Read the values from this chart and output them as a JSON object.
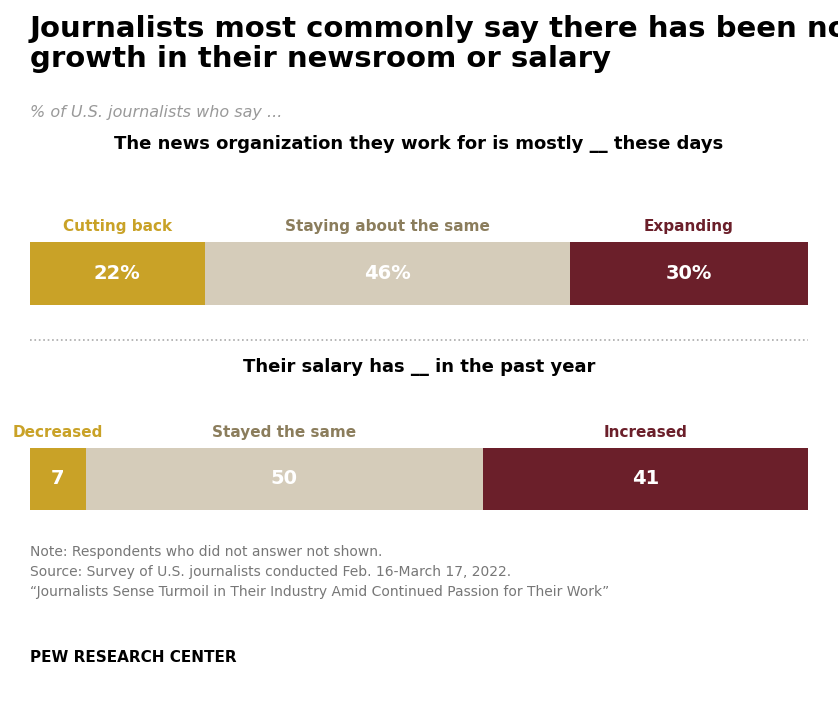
{
  "title_line1": "Journalists most commonly say there has been no",
  "title_line2": "growth in their newsroom or salary",
  "subtitle": "% of U.S. journalists who say ...",
  "chart1_title": "The news organization they work for is mostly __ these days",
  "chart2_title": "Their salary has __ in the past year",
  "chart1": {
    "segments": [
      {
        "label": "Cutting back",
        "value": 22,
        "display": "22%",
        "color": "#C9A227"
      },
      {
        "label": "Staying about the same",
        "value": 46,
        "display": "46%",
        "color": "#D5CCBA"
      },
      {
        "label": "Expanding",
        "value": 30,
        "display": "30%",
        "color": "#6B1F2A"
      }
    ],
    "label_colors": [
      "#C9A227",
      "#8B7D5C",
      "#6B1F2A"
    ]
  },
  "chart2": {
    "segments": [
      {
        "label": "Decreased",
        "value": 7,
        "display": "7",
        "color": "#C9A227"
      },
      {
        "label": "Stayed the same",
        "value": 50,
        "display": "50",
        "color": "#D5CCBA"
      },
      {
        "label": "Increased",
        "value": 41,
        "display": "41",
        "color": "#6B1F2A"
      }
    ],
    "label_colors": [
      "#C9A227",
      "#8B7D5C",
      "#6B1F2A"
    ]
  },
  "note_lines": [
    "Note: Respondents who did not answer not shown.",
    "Source: Survey of U.S. journalists conducted Feb. 16-March 17, 2022.",
    "“Journalists Sense Turmoil in Their Industry Amid Continued Passion for Their Work”"
  ],
  "footer": "PEW RESEARCH CENTER",
  "background_color": "#FFFFFF",
  "title_fontsize": 21,
  "subtitle_fontsize": 11.5,
  "chart_title_fontsize": 13,
  "label_fontsize": 11,
  "value_fontsize": 14,
  "note_fontsize": 10,
  "footer_fontsize": 11,
  "sep_color": "#AAAAAA",
  "note_color": "#777777",
  "value_text_color": "white"
}
